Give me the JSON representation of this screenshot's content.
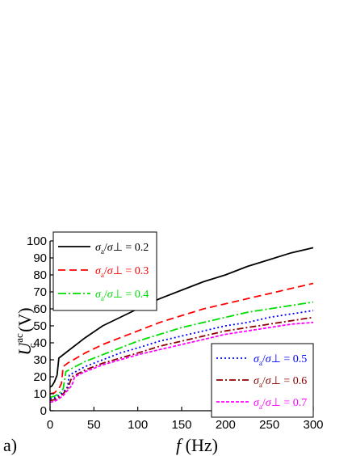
{
  "chart_data": {
    "type": "line",
    "panel_label": "a)",
    "xlabel": {
      "var": "f",
      "unit": " (Hz)"
    },
    "ylabel": {
      "var": "U",
      "sub": "c",
      "sup": "ac",
      "unit": " (V)"
    },
    "xlim": [
      0,
      300
    ],
    "ylim": [
      0,
      100
    ],
    "xticks": [
      0,
      50,
      100,
      150,
      200,
      250,
      300
    ],
    "yticks": [
      0,
      10,
      20,
      30,
      40,
      50,
      60,
      70,
      80,
      90,
      100
    ],
    "grid": false,
    "legend_placement": [
      "top-left",
      "bottom-right"
    ],
    "series": [
      {
        "name": "σa/σ⊥ = 0.2",
        "ratio_num": "σ",
        "ratio_sub": "a",
        "ratio_den": "σ",
        "ratio_den_sym": "⊥",
        "value_text": " = 0.2",
        "color": "#000000",
        "dash": "",
        "x": [
          0,
          2,
          5,
          8,
          10,
          20,
          40,
          60,
          80,
          100,
          125,
          150,
          175,
          200,
          225,
          250,
          275,
          300
        ],
        "y": [
          14,
          14.5,
          17,
          21,
          31,
          35,
          43,
          50,
          55,
          60,
          66,
          71,
          76,
          80,
          85,
          89,
          93,
          96
        ]
      },
      {
        "name": "σa/σ⊥ = 0.3",
        "ratio_num": "σ",
        "ratio_sub": "a",
        "ratio_den": "σ",
        "ratio_den_sym": "⊥",
        "value_text": " = 0.3",
        "color": "#ff0000",
        "dash": "9,5",
        "x": [
          0,
          5,
          10,
          13,
          15,
          20,
          40,
          60,
          80,
          100,
          125,
          150,
          175,
          200,
          225,
          250,
          275,
          300
        ],
        "y": [
          10,
          10.5,
          13,
          16,
          26,
          28,
          34,
          39,
          43,
          47,
          52,
          56,
          60,
          63,
          66,
          69,
          72,
          75
        ]
      },
      {
        "name": "σa/σ⊥ = 0.4",
        "ratio_num": "σ",
        "ratio_sub": "a",
        "ratio_den": "σ",
        "ratio_den_sym": "⊥",
        "value_text": " = 0.4",
        "color": "#00dd00",
        "dash": "10,3,2,3",
        "x": [
          0,
          5,
          10,
          15,
          18,
          25,
          40,
          60,
          80,
          100,
          125,
          150,
          175,
          200,
          225,
          250,
          275,
          300
        ],
        "y": [
          8,
          8.5,
          10,
          13,
          23,
          25,
          29,
          33,
          37,
          41,
          45,
          49,
          52,
          55,
          58,
          60,
          62,
          64
        ]
      },
      {
        "name": "σa/σ⊥ = 0.5",
        "ratio_num": "σ",
        "ratio_sub": "a",
        "ratio_den": "σ",
        "ratio_den_sym": "⊥",
        "value_text": " = 0.5",
        "color": "#0000ff",
        "dash": "2,3",
        "x": [
          0,
          5,
          10,
          15,
          20,
          22,
          40,
          60,
          80,
          100,
          125,
          150,
          175,
          200,
          225,
          250,
          275,
          300
        ],
        "y": [
          7,
          7.5,
          9,
          11,
          14,
          21,
          26,
          30,
          34,
          37,
          41,
          44,
          47,
          50,
          52,
          55,
          57,
          59
        ]
      },
      {
        "name": "σa/σ⊥ = 0.6",
        "ratio_num": "σ",
        "ratio_sub": "a",
        "ratio_den": "σ",
        "ratio_den_sym": "⊥",
        "value_text": " = 0.6",
        "color": "#8b0000",
        "dash": "8,3,2,3",
        "x": [
          0,
          5,
          10,
          15,
          20,
          25,
          40,
          60,
          80,
          100,
          125,
          150,
          175,
          200,
          225,
          250,
          275,
          300
        ],
        "y": [
          6,
          6.5,
          8,
          10,
          13,
          20,
          24,
          28,
          31,
          34,
          38,
          41,
          44,
          47,
          49,
          51,
          53,
          55
        ]
      },
      {
        "name": "σa/σ⊥ = 0.7",
        "ratio_num": "σ",
        "ratio_sub": "a",
        "ratio_den": "σ",
        "ratio_den_sym": "⊥",
        "value_text": " = 0.7",
        "color": "#ff00ff",
        "dash": "4,2",
        "x": [
          0,
          5,
          10,
          15,
          20,
          25,
          28,
          40,
          60,
          80,
          100,
          125,
          150,
          175,
          200,
          225,
          250,
          275,
          300
        ],
        "y": [
          5,
          5.5,
          7,
          9,
          12,
          15,
          20,
          23,
          27,
          30,
          33,
          36,
          39,
          42,
          45,
          47,
          49,
          51,
          52
        ]
      }
    ]
  }
}
